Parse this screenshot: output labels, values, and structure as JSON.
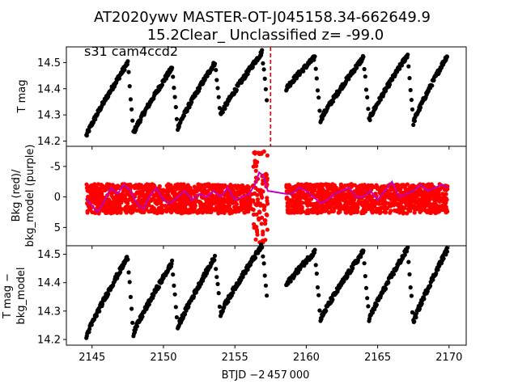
{
  "title_line1": "AT2020ywv  MASTER-OT-J045158.34-662649.9",
  "title_line2": "15.2Clear_ Unclassified z= -99.0",
  "annotation": "s31 cam4ccd2",
  "xlabel": "BTJD −2 457 000",
  "x_ticks": [
    2145,
    2150,
    2155,
    2160,
    2165,
    2170
  ],
  "xlim": [
    2143.2,
    2171.2
  ],
  "marker_x": 2157.5,
  "chart_data": [
    {
      "type": "scatter",
      "panel": "top",
      "ylabel": "T mag",
      "ylim": [
        14.56,
        14.18
      ],
      "y_ticks": [
        14.2,
        14.3,
        14.4,
        14.5
      ],
      "inverted_y": true,
      "point_color": "#000000",
      "series": [
        {
          "segments": [
            {
              "x0": 2144.6,
              "x1": 2147.5,
              "peak": 14.22,
              "trough": 14.5
            },
            {
              "x0": 2147.5,
              "x1": 2147.9,
              "rise": true,
              "from": 14.5,
              "to": 14.23
            },
            {
              "x0": 2147.9,
              "x1": 2150.6,
              "peak": 14.23,
              "trough": 14.48
            },
            {
              "x0": 2150.6,
              "x1": 2151.0,
              "rise": true,
              "from": 14.48,
              "to": 14.25
            },
            {
              "x0": 2151.0,
              "x1": 2153.6,
              "peak": 14.25,
              "trough": 14.5
            },
            {
              "x0": 2153.6,
              "x1": 2154.0,
              "rise": true,
              "from": 14.5,
              "to": 14.3
            },
            {
              "x0": 2154.0,
              "x1": 2156.9,
              "peak": 14.3,
              "trough": 14.54
            },
            {
              "x0": 2156.9,
              "x1": 2157.3,
              "rise": true,
              "from": 14.54,
              "to": 14.33
            },
            {
              "x0": 2158.6,
              "x1": 2160.6,
              "peak": 14.4,
              "trough": 14.52
            },
            {
              "x0": 2160.6,
              "x1": 2161.0,
              "rise": true,
              "from": 14.52,
              "to": 14.28
            },
            {
              "x0": 2161.0,
              "x1": 2164.0,
              "peak": 14.28,
              "trough": 14.52
            },
            {
              "x0": 2164.0,
              "x1": 2164.4,
              "rise": true,
              "from": 14.52,
              "to": 14.28
            },
            {
              "x0": 2164.4,
              "x1": 2167.1,
              "peak": 14.28,
              "trough": 14.53
            },
            {
              "x0": 2167.1,
              "x1": 2167.5,
              "rise": true,
              "from": 14.53,
              "to": 14.27
            },
            {
              "x0": 2167.5,
              "x1": 2169.9,
              "peak": 14.27,
              "trough": 14.53
            }
          ]
        }
      ]
    },
    {
      "type": "scatter",
      "panel": "middle",
      "ylabel_line1": "Bkg (red)/",
      "ylabel_line2": "bkg_model (purple)",
      "ylim": [
        -8.3,
        8.0
      ],
      "y_ticks": [
        5,
        0,
        -5
      ],
      "point_color": "#ff0000",
      "model_color": "#bf00bf",
      "series": [
        {
          "name": "Bkg",
          "x_range": [
            2144.6,
            2169.9
          ],
          "scatter_amplitude": 2.4,
          "mean": 0.3
        },
        {
          "name": "bkg_model",
          "x": [
            2144.6,
            2145.0,
            2145.4,
            2145.9,
            2146.3,
            2146.8,
            2147.2,
            2147.7,
            2148.1,
            2148.6,
            2149.0,
            2149.5,
            2150.0,
            2150.5,
            2151.0,
            2151.5,
            2152.0,
            2152.5,
            2153.0,
            2153.5,
            2154.0,
            2154.5,
            2155.0,
            2155.5,
            2156.0,
            2156.4,
            2156.7,
            2157.0,
            2157.3,
            2158.6,
            2159.0,
            2159.5,
            2160.0,
            2160.5,
            2161.0,
            2161.5,
            2162.0,
            2162.5,
            2163.0,
            2163.5,
            2164.0,
            2164.5,
            2165.0,
            2165.5,
            2166.0,
            2166.5,
            2167.0,
            2167.5,
            2168.0,
            2168.5,
            2169.0,
            2169.5,
            2169.9
          ],
          "y": [
            0.3,
            1.5,
            2.5,
            0.5,
            -1.5,
            -0.5,
            -2.0,
            -1.0,
            1.0,
            2.0,
            0.0,
            -1.5,
            0.5,
            1.0,
            0.0,
            -1.0,
            0.5,
            -0.5,
            0.0,
            -1.0,
            0.0,
            -1.5,
            0.5,
            0.0,
            -0.5,
            -2.0,
            -4.0,
            -3.5,
            -1.0,
            -0.5,
            -0.5,
            -1.5,
            -1.0,
            0.0,
            1.0,
            0.5,
            -0.5,
            -1.0,
            -1.5,
            0.0,
            0.0,
            -1.0,
            0.5,
            -1.0,
            -2.5,
            0.0,
            -0.5,
            -1.0,
            -2.0,
            -1.0,
            -1.5,
            -2.0,
            -1.5
          ]
        }
      ]
    },
    {
      "type": "scatter",
      "panel": "bottom",
      "ylabel_line1": "T mag −",
      "ylabel_line2": "bkg_model",
      "ylim": [
        14.53,
        14.18
      ],
      "y_ticks": [
        14.2,
        14.3,
        14.4,
        14.5
      ],
      "inverted_y": true,
      "point_color": "#000000"
    }
  ]
}
